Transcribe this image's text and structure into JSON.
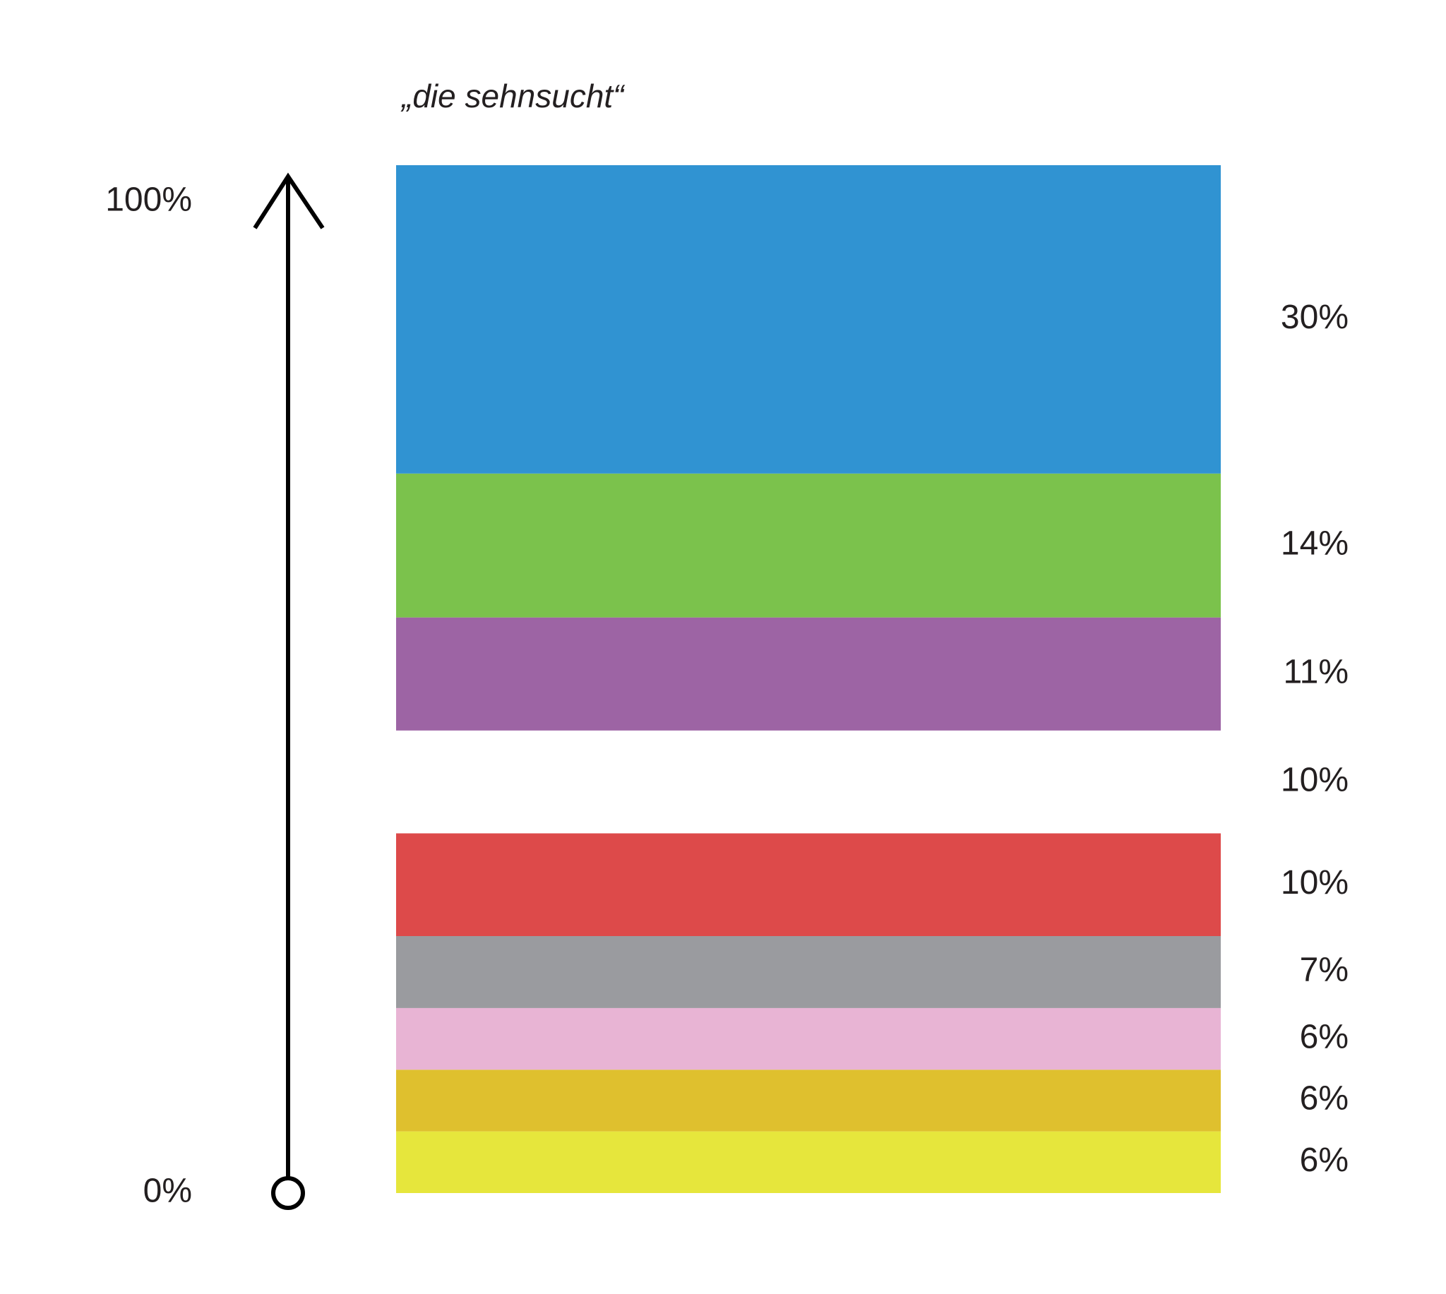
{
  "chart_data": {
    "type": "stacked-bar",
    "title": "„die sehnsucht“",
    "ylim": [
      0,
      100
    ],
    "yticks": [
      {
        "value": 0,
        "label": "0%"
      },
      {
        "value": 100,
        "label": "100%"
      }
    ],
    "series": [
      {
        "color": "#e6e63c",
        "values": [
          6
        ],
        "value_labels": [
          "6%"
        ]
      },
      {
        "color": "#dfc02e",
        "values": [
          6
        ],
        "value_labels": [
          "6%"
        ]
      },
      {
        "color": "#e8b4d4",
        "values": [
          6
        ],
        "value_labels": [
          "6%"
        ]
      },
      {
        "color": "#9a9b9f",
        "values": [
          7
        ],
        "value_labels": [
          "7%"
        ]
      },
      {
        "color": "#dd4a4a",
        "values": [
          10
        ],
        "value_labels": [
          "10%"
        ]
      },
      {
        "color": "#ffffff",
        "values": [
          10
        ],
        "value_labels": [
          "10%"
        ]
      },
      {
        "color": "#9d64a4",
        "values": [
          11
        ],
        "value_labels": [
          "11%"
        ]
      },
      {
        "color": "#7bc24c",
        "values": [
          14
        ],
        "value_labels": [
          "14%"
        ]
      },
      {
        "color": "#3093d2",
        "values": [
          30
        ],
        "value_labels": [
          "30%"
        ]
      }
    ]
  }
}
